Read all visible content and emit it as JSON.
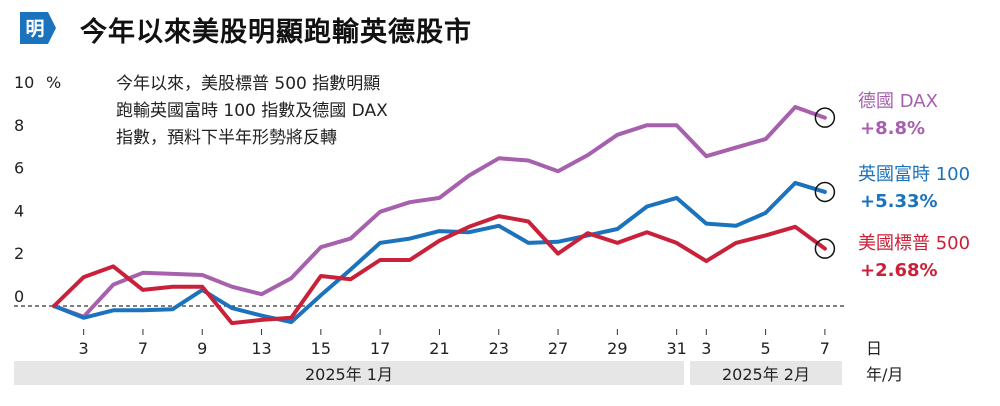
{
  "header": {
    "badge": "明",
    "title": "今年以來美股明顯跑輸英德股市"
  },
  "annotation": [
    "今年以來，美股標普 500 指數明顯",
    "跑輸英國富時 100 指數及德國 DAX",
    "指數，預料下半年形勢將反轉"
  ],
  "chart_data": {
    "type": "line",
    "y_unit": "%",
    "yticks": [
      "10",
      "8",
      "6",
      "4",
      "2",
      "0"
    ],
    "ylim": [
      -1.5,
      10.5
    ],
    "x_unit_day": "日",
    "x_unit_month": "年/月",
    "x_day_labels": [
      {
        "i": 1,
        "label": "3"
      },
      {
        "i": 3,
        "label": "7"
      },
      {
        "i": 5,
        "label": "9"
      },
      {
        "i": 7,
        "label": "13"
      },
      {
        "i": 9,
        "label": "15"
      },
      {
        "i": 11,
        "label": "17"
      },
      {
        "i": 13,
        "label": "21"
      },
      {
        "i": 15,
        "label": "23"
      },
      {
        "i": 17,
        "label": "27"
      },
      {
        "i": 19,
        "label": "29"
      },
      {
        "i": 21,
        "label": "31"
      },
      {
        "i": 22,
        "label": "3"
      },
      {
        "i": 24,
        "label": "5"
      },
      {
        "i": 26,
        "label": "7"
      }
    ],
    "months": [
      "2025年 1月",
      "2025年 2月"
    ],
    "series": [
      {
        "name": "德國 DAX",
        "change": "+8.8%",
        "color": "#a660ad",
        "values": [
          0,
          -0.5,
          1.0,
          1.55,
          1.5,
          1.45,
          0.9,
          0.55,
          1.3,
          2.75,
          3.15,
          4.4,
          4.85,
          5.05,
          6.1,
          6.9,
          6.8,
          6.3,
          7.05,
          8.0,
          8.45,
          8.45,
          7.0,
          7.4,
          7.8,
          9.3,
          8.8
        ]
      },
      {
        "name": "英國富時 100",
        "change": "+5.33%",
        "color": "#1b73bd",
        "values": [
          0,
          -0.55,
          -0.2,
          -0.2,
          -0.15,
          0.75,
          -0.1,
          -0.45,
          -0.75,
          0.5,
          1.7,
          2.95,
          3.15,
          3.5,
          3.45,
          3.75,
          2.95,
          3.0,
          3.3,
          3.6,
          4.65,
          5.05,
          3.85,
          3.75,
          4.35,
          5.75,
          5.33
        ]
      },
      {
        "name": "美國標普 500",
        "change": "+2.68%",
        "color": "#c9213a",
        "values": [
          0,
          1.35,
          1.85,
          0.75,
          0.9,
          0.9,
          -0.8,
          -0.65,
          -0.55,
          1.4,
          1.25,
          2.15,
          2.15,
          3.05,
          3.7,
          4.2,
          3.95,
          2.45,
          3.4,
          2.95,
          3.45,
          2.95,
          2.1,
          2.95,
          3.3,
          3.7,
          2.68
        ]
      }
    ]
  }
}
